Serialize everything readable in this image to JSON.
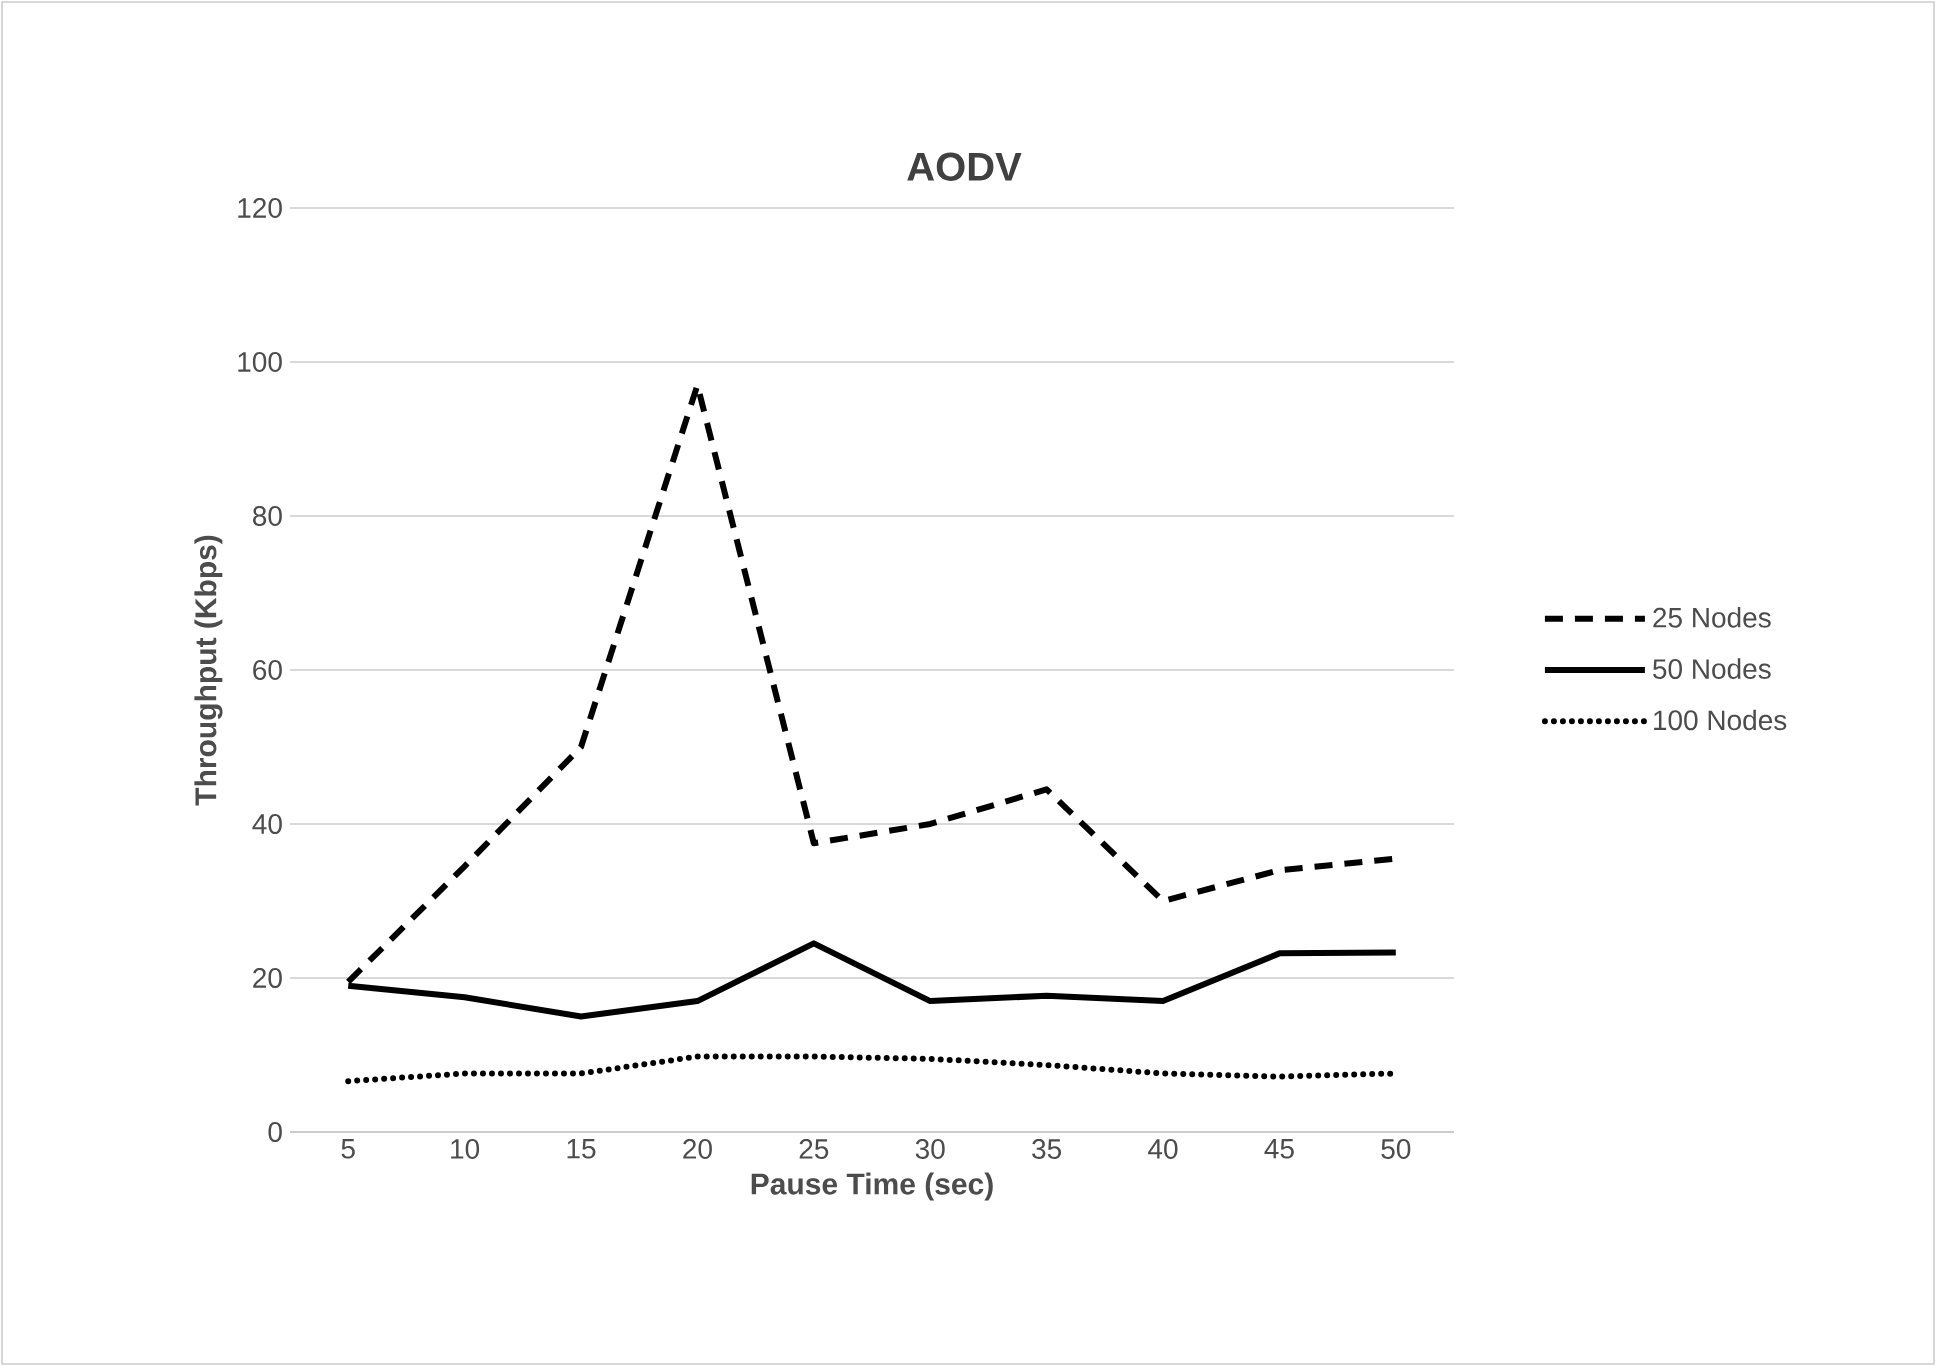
{
  "chart_data": {
    "type": "line",
    "title": "AODV",
    "xlabel": "Pause Time (sec)",
    "ylabel": "Throughput (Kbps)",
    "categories": [
      "5",
      "10",
      "15",
      "20",
      "25",
      "30",
      "35",
      "40",
      "45",
      "50"
    ],
    "ylim": [
      0,
      120
    ],
    "yticks": [
      0,
      20,
      40,
      60,
      80,
      100,
      120
    ],
    "grid": "y",
    "legend": "right",
    "series": [
      {
        "name": "25 Nodes",
        "color": "#000000",
        "line_style": "dashed",
        "values": [
          19.5,
          34.5,
          50,
          97,
          37.5,
          40,
          44.5,
          30,
          34,
          35.5
        ]
      },
      {
        "name": "50 Nodes",
        "color": "#000000",
        "line_style": "solid",
        "values": [
          19,
          17.5,
          15,
          17,
          24.5,
          17,
          17.7,
          17,
          23.2,
          23.3
        ]
      },
      {
        "name": "100 Nodes",
        "color": "#000000",
        "line_style": "dotted",
        "values": [
          6.6,
          7.6,
          7.6,
          9.8,
          9.8,
          9.5,
          8.7,
          7.6,
          7.2,
          7.6
        ]
      }
    ]
  }
}
